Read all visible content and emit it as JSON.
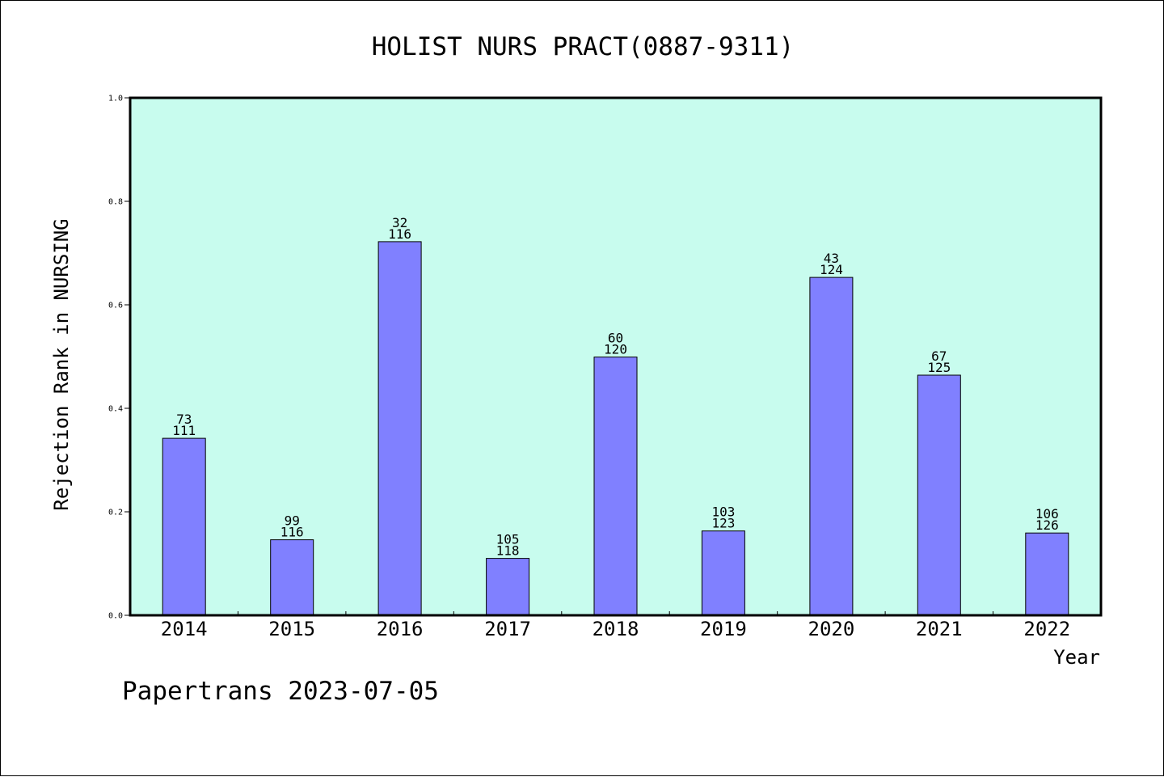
{
  "chart_data": {
    "type": "bar",
    "title": "HOLIST NURS PRACT(0887-9311)",
    "xlabel": "Year",
    "ylabel": "Rejection Rank in NURSING",
    "ylim": [
      0,
      1.0
    ],
    "yticks": [
      "0.0",
      "0.2",
      "0.4",
      "0.6",
      "0.8",
      "1.0"
    ],
    "grid": false,
    "legend": "none",
    "colors": {
      "plot_background": "#c8fcee",
      "bar_fill": "#8080ff",
      "axis": "#000000"
    },
    "categories": [
      "2014",
      "2015",
      "2016",
      "2017",
      "2018",
      "2019",
      "2020",
      "2021",
      "2022"
    ],
    "values": [
      0.342,
      0.146,
      0.722,
      0.11,
      0.499,
      0.163,
      0.653,
      0.464,
      0.159
    ],
    "label_top": [
      "73",
      "99",
      "32",
      "105",
      "60",
      "103",
      "43",
      "67",
      "106"
    ],
    "label_bottom": [
      "111",
      "116",
      "116",
      "118",
      "120",
      "123",
      "124",
      "125",
      "126"
    ]
  },
  "footer": {
    "credit": "Papertrans 2023-07-05"
  }
}
